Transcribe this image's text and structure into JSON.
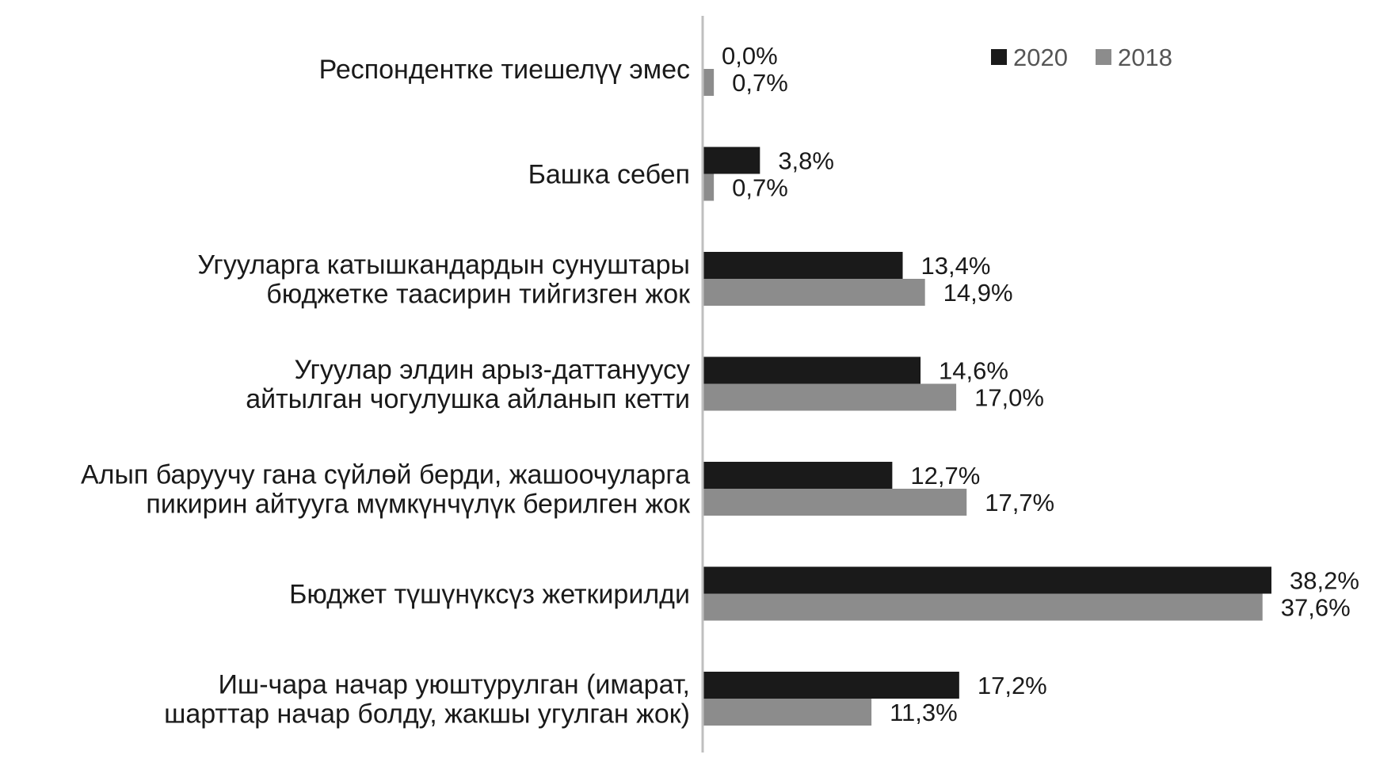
{
  "chart_data": {
    "type": "bar",
    "orientation": "horizontal",
    "title": "",
    "xlabel": "",
    "ylabel": "",
    "categories": [
      [
        "Респондентке тиешелүү эмес"
      ],
      [
        "Башка себеп"
      ],
      [
        "Угууларга катышкандардын сунуштары",
        "бюджетке таасирин тийгизген жок"
      ],
      [
        "Угуулар элдин арыз-даттануусу",
        "айтылган чогулушка айланып кетти"
      ],
      [
        "Алып баруучу гана сүйлөй берди, жашоочуларга",
        "пикирин айтууга мүмкүнчүлүк берилген жок"
      ],
      [
        "Бюджет түшүнүксүз жеткирилди"
      ],
      [
        "Иш-чара начар уюштурулган (имарат,",
        "шарттар начар болду, жакшы угулган жок)"
      ]
    ],
    "series": [
      {
        "name": "2020",
        "color": "#1a1a1a",
        "values": [
          0.0,
          3.8,
          13.4,
          14.6,
          12.7,
          38.2,
          17.2
        ],
        "labels": [
          "0,0%",
          "3,8%",
          "13,4%",
          "14,6%",
          "12,7%",
          "38,2%",
          "17,2%"
        ]
      },
      {
        "name": "2018",
        "color": "#8c8c8c",
        "values": [
          0.7,
          0.7,
          14.9,
          17.0,
          17.7,
          37.6,
          11.3
        ],
        "labels": [
          "0,7%",
          "0,7%",
          "14,9%",
          "17,0%",
          "17,7%",
          "37,6%",
          "11,3%"
        ]
      }
    ],
    "xlim": [
      0,
      38.2
    ],
    "grid": false,
    "legend_position": "top-right",
    "axis_color": "#bfbfbf"
  }
}
